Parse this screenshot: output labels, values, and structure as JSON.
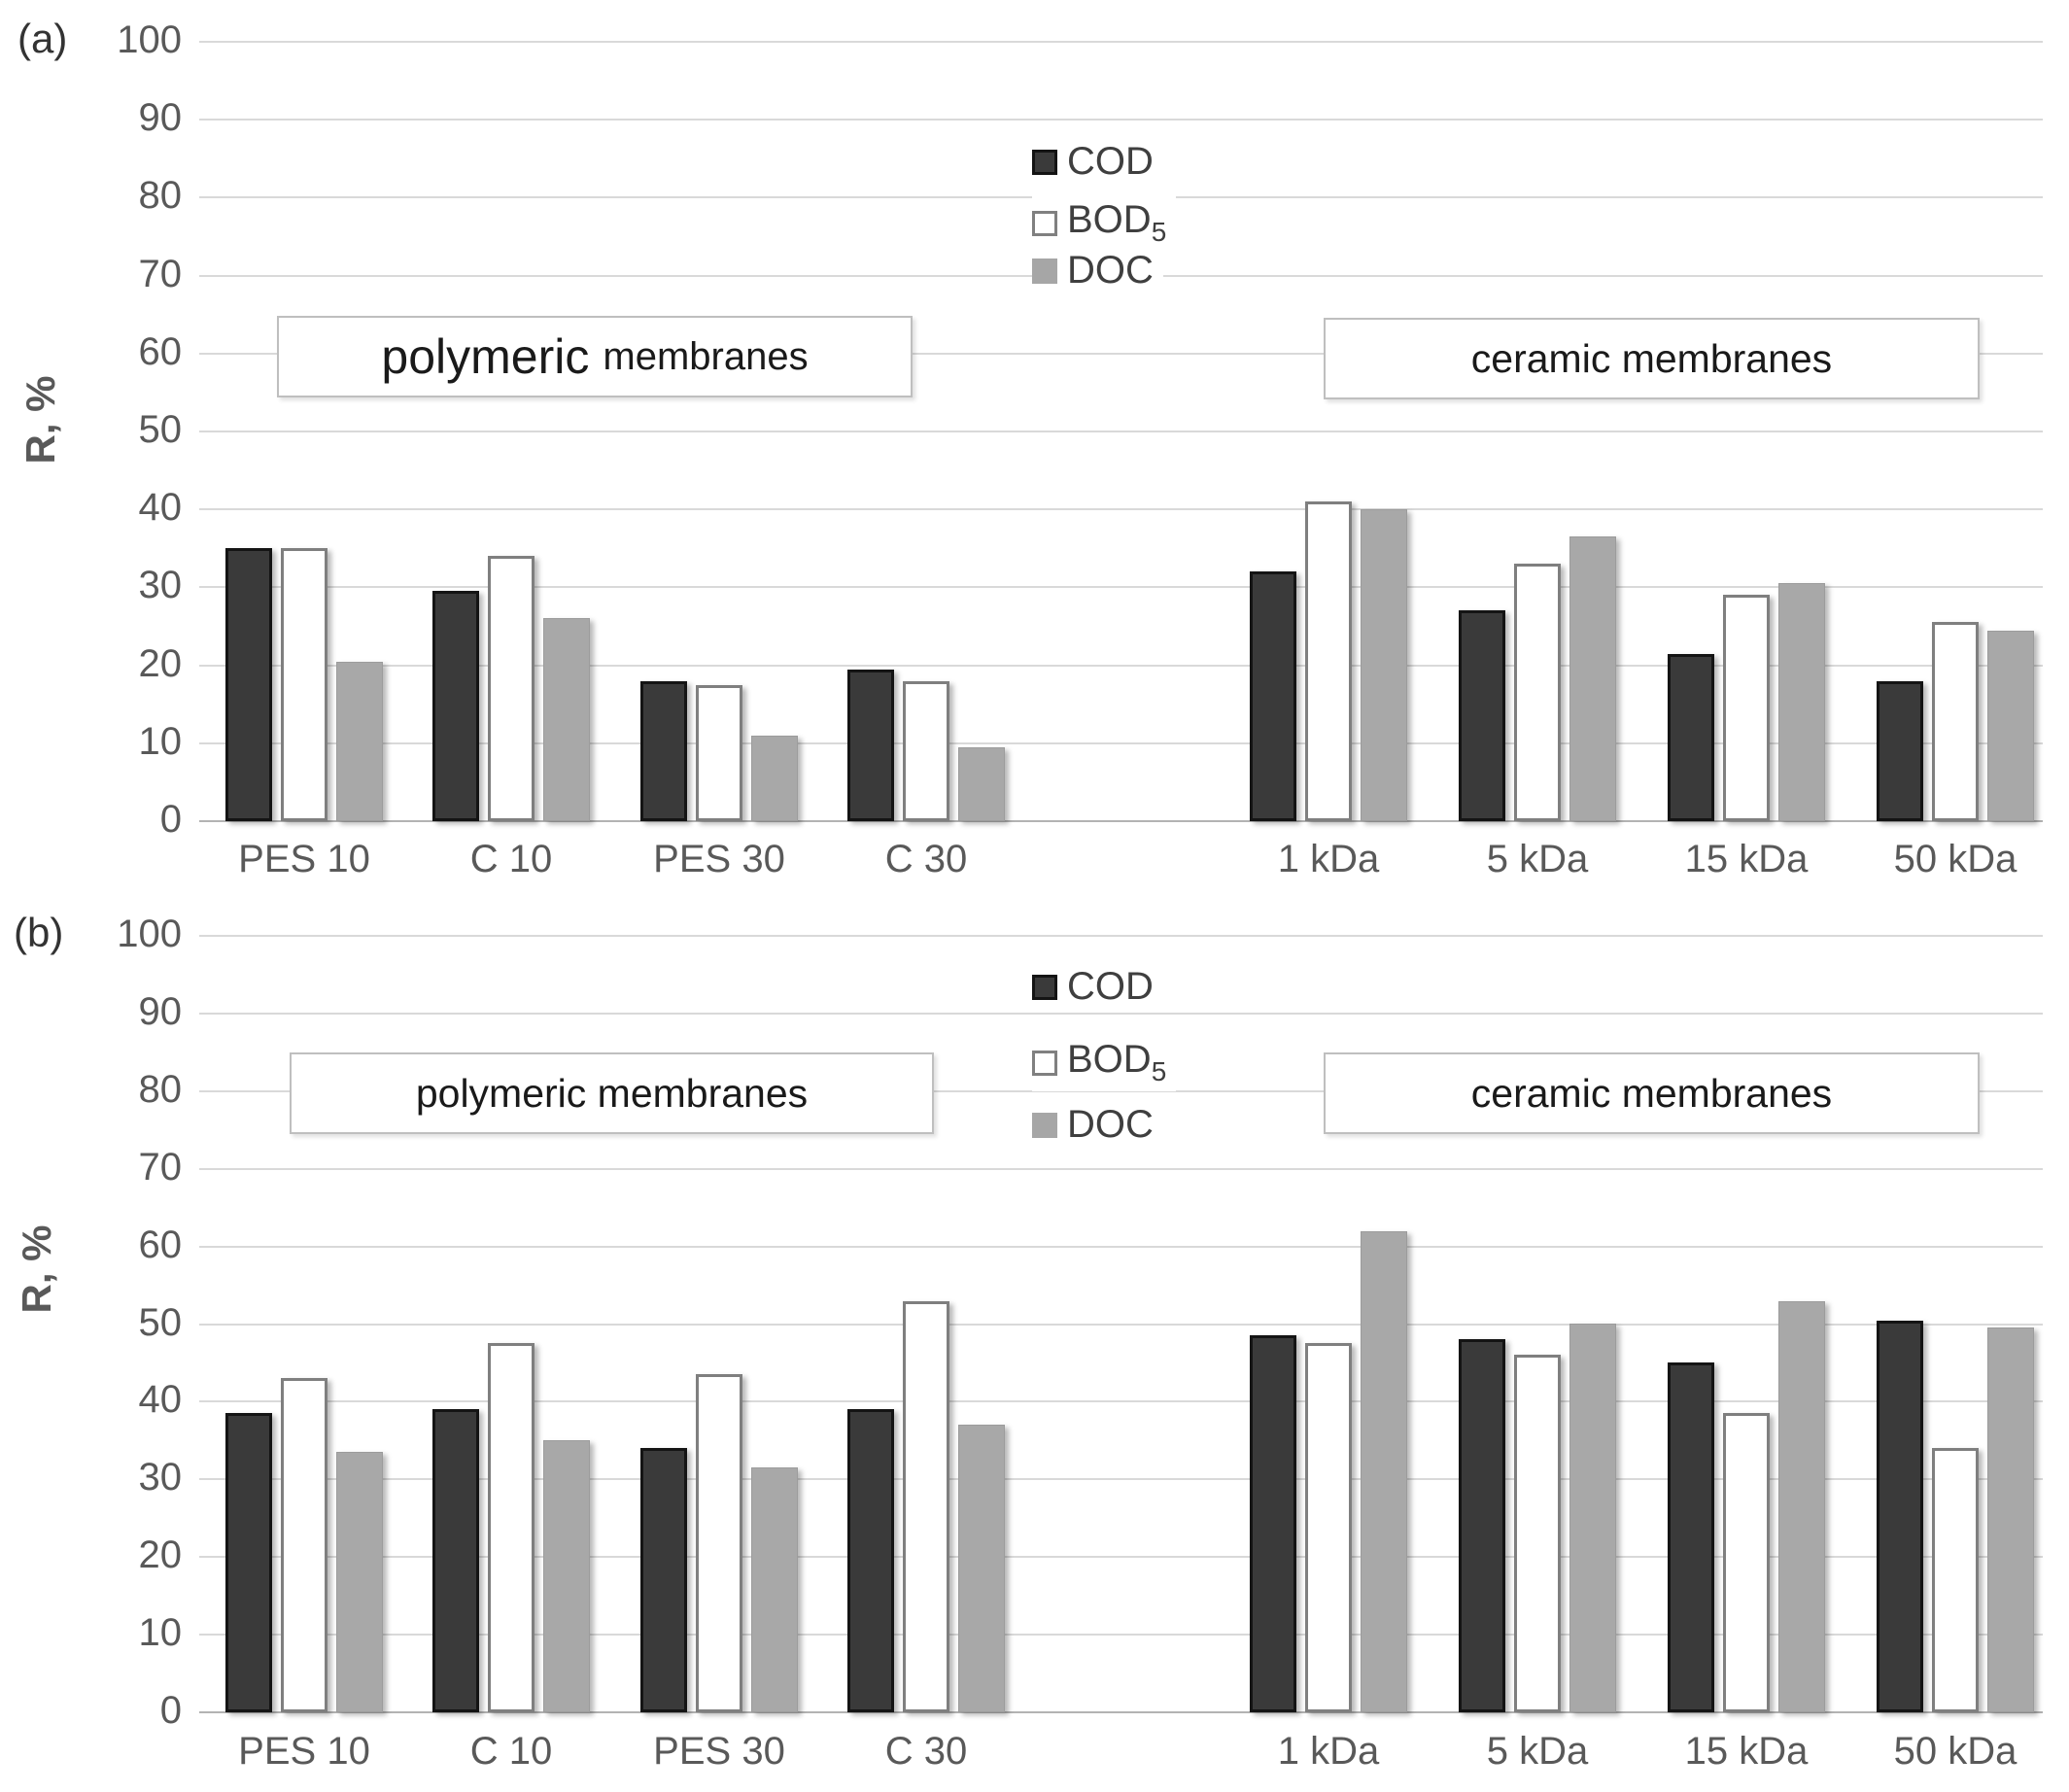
{
  "axis": {
    "ylabel": "R, %",
    "ymin": 0,
    "ymax": 100,
    "tick_step": 10,
    "yticks": [
      100,
      90,
      80,
      70,
      60,
      50,
      40,
      30,
      20,
      10,
      0
    ]
  },
  "legend": [
    {
      "name": "COD",
      "sub": "",
      "swatch_fill": "#3a3a3a",
      "swatch_border": "#141414"
    },
    {
      "name": "BOD",
      "sub": "5",
      "swatch_fill": "#ffffff",
      "swatch_border": "#808080"
    },
    {
      "name": "DOC",
      "sub": "",
      "swatch_fill": "#a6a6a6",
      "swatch_border": "#a6a6a6"
    }
  ],
  "series_styles": {
    "COD": {
      "class": "s-cod",
      "fill": "#3a3a3a",
      "border": "#141414"
    },
    "BOD5": {
      "class": "s-bod5",
      "fill": "#ffffff",
      "border": "#7f7f7f"
    },
    "DOC": {
      "class": "s-doc",
      "fill": "#a8a8a8",
      "border": "#9c9c9c"
    }
  },
  "chart_data": [
    {
      "panel_label": "(a)",
      "type": "bar",
      "ylabel": "R, %",
      "ylim": [
        0,
        100
      ],
      "grid": true,
      "legend_position": "top-center",
      "categories": [
        "PES 10",
        "C 10",
        "PES 30",
        "C 30",
        "1 kDa",
        "5 kDa",
        "15 kDa",
        "50 kDa"
      ],
      "series": [
        {
          "name": "COD",
          "values": [
            35,
            29.5,
            18,
            19.5,
            32,
            27,
            21.5,
            18
          ]
        },
        {
          "name": "BOD5",
          "values": [
            35,
            34,
            17.5,
            18,
            41,
            33,
            29,
            25.5
          ]
        },
        {
          "name": "DOC",
          "values": [
            20.5,
            26,
            11,
            9.5,
            40,
            36.5,
            30.5,
            24.5
          ]
        }
      ],
      "groups": [
        {
          "label": "polymeric membranes",
          "label_big": "polymeric",
          "label_small": "membranes",
          "categories": [
            "PES 10",
            "C 10",
            "PES 30",
            "C 30"
          ]
        },
        {
          "label": "ceramic membranes",
          "categories": [
            "1 kDa",
            "5 kDa",
            "15 kDa",
            "50 kDa"
          ]
        }
      ],
      "yticks": [
        100,
        90,
        80,
        70,
        60,
        50,
        40,
        30,
        20,
        10,
        0
      ]
    },
    {
      "panel_label": "(b)",
      "type": "bar",
      "ylabel": "R, %",
      "ylim": [
        0,
        100
      ],
      "grid": true,
      "legend_position": "top-center",
      "categories": [
        "PES 10",
        "C 10",
        "PES 30",
        "C 30",
        "1 kDa",
        "5 kDa",
        "15 kDa",
        "50 kDa"
      ],
      "series": [
        {
          "name": "COD",
          "values": [
            38.5,
            39,
            34,
            39,
            48.5,
            48,
            45,
            50.5
          ]
        },
        {
          "name": "BOD5",
          "values": [
            43,
            47.5,
            43.5,
            53,
            47.5,
            46,
            38.5,
            34
          ]
        },
        {
          "name": "DOC",
          "values": [
            33.5,
            35,
            31.5,
            37,
            62,
            50,
            53,
            49.5
          ]
        }
      ],
      "groups": [
        {
          "label": "polymeric membranes",
          "categories": [
            "PES 10",
            "C 10",
            "PES 30",
            "C 30"
          ]
        },
        {
          "label": "ceramic membranes",
          "categories": [
            "1 kDa",
            "5 kDa",
            "15 kDa",
            "50 kDa"
          ]
        }
      ],
      "yticks": [
        100,
        90,
        80,
        70,
        60,
        50,
        40,
        30,
        20,
        10,
        0
      ]
    }
  ]
}
